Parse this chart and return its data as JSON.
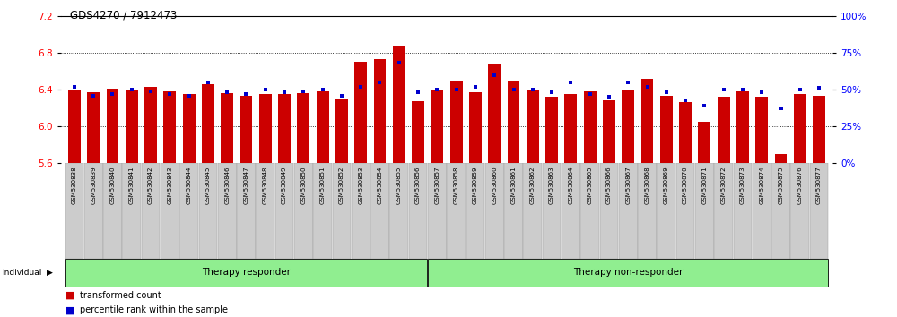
{
  "title": "GDS4270 / 7912473",
  "samples": [
    "GSM530838",
    "GSM530839",
    "GSM530840",
    "GSM530841",
    "GSM530842",
    "GSM530843",
    "GSM530844",
    "GSM530845",
    "GSM530846",
    "GSM530847",
    "GSM530848",
    "GSM530849",
    "GSM530850",
    "GSM530851",
    "GSM530852",
    "GSM530853",
    "GSM530854",
    "GSM530855",
    "GSM530856",
    "GSM530857",
    "GSM530858",
    "GSM530859",
    "GSM530860",
    "GSM530861",
    "GSM530862",
    "GSM530863",
    "GSM530864",
    "GSM530865",
    "GSM530866",
    "GSM530867",
    "GSM530868",
    "GSM530869",
    "GSM530870",
    "GSM530871",
    "GSM530872",
    "GSM530873",
    "GSM530874",
    "GSM530875",
    "GSM530876",
    "GSM530877"
  ],
  "bar_values": [
    6.4,
    6.37,
    6.41,
    6.4,
    6.43,
    6.38,
    6.35,
    6.46,
    6.36,
    6.33,
    6.35,
    6.35,
    6.36,
    6.38,
    6.3,
    6.7,
    6.73,
    6.88,
    6.27,
    6.39,
    6.5,
    6.37,
    6.68,
    6.5,
    6.39,
    6.32,
    6.35,
    6.38,
    6.28,
    6.4,
    6.52,
    6.33,
    6.26,
    6.05,
    6.32,
    6.38,
    6.32,
    5.7,
    6.35,
    6.33
  ],
  "percentile_values": [
    52,
    46,
    47,
    50,
    49,
    47,
    46,
    55,
    48,
    47,
    50,
    48,
    49,
    50,
    46,
    52,
    55,
    68,
    48,
    50,
    50,
    52,
    60,
    50,
    50,
    48,
    55,
    47,
    45,
    55,
    52,
    48,
    43,
    39,
    50,
    50,
    48,
    37,
    50,
    51
  ],
  "group1_label": "Therapy responder",
  "group1_count": 19,
  "group2_label": "Therapy non-responder",
  "group2_count": 21,
  "ylim_left": [
    5.6,
    7.2
  ],
  "ylim_right": [
    0,
    100
  ],
  "yticks_left": [
    5.6,
    6.0,
    6.4,
    6.8,
    7.2
  ],
  "yticks_right": [
    0,
    25,
    50,
    75,
    100
  ],
  "bar_color": "#cc0000",
  "dot_color": "#0000cc",
  "group_bg_color": "#90EE90",
  "tick_bg_color": "#cccccc",
  "individual_label": "individual"
}
